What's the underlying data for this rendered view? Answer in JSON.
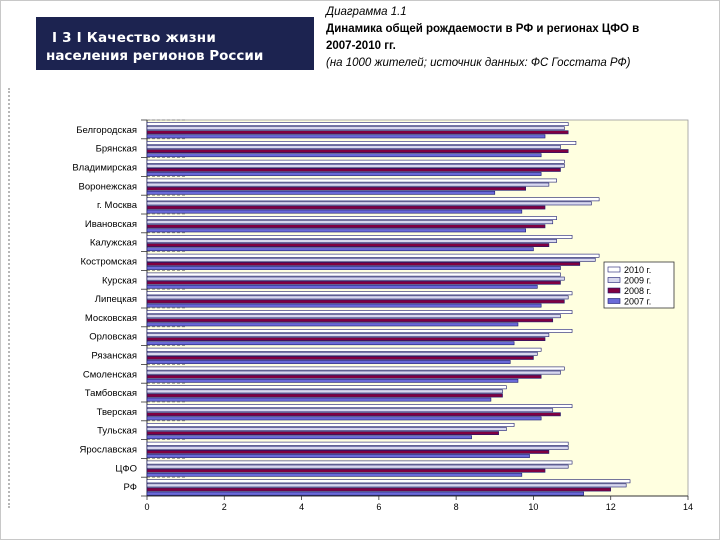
{
  "header": {
    "line1": "I 3 I Качество жизни",
    "line2": "населения регионов России"
  },
  "title": {
    "line1": "Диаграмма 1.1",
    "line2": "Динамика общей рождаемости в РФ и регионах ЦФО в",
    "line3": "2007-2010 гг.",
    "line4": "(на 1000 жителей; источник данных: ФС Госстата РФ)"
  },
  "colors": {
    "plot_bg": "#ffffe0",
    "s2010": "#ffffff",
    "s2009": "#d8d8ee",
    "s2008": "#800040",
    "s2007": "#6a6ad8",
    "outline": "#1a1a6e"
  },
  "chart_data": {
    "type": "bar",
    "orientation": "horizontal",
    "title": "Динамика общей рождаемости в РФ и регионах ЦФО в 2007-2010 гг.",
    "xlabel": "",
    "ylabel": "",
    "xlim": [
      0,
      14
    ],
    "xticks": [
      0,
      2,
      4,
      6,
      8,
      10,
      12,
      14
    ],
    "legend_position": "right",
    "categories": [
      "Белгородская",
      "Брянская",
      "Владимирская",
      "Воронежская",
      "г. Москва",
      "Ивановская",
      "Калужская",
      "Костромская",
      "Курская",
      "Липецкая",
      "Московская",
      "Орловская",
      "Рязанская",
      "Смоленская",
      "Тамбовская",
      "Тверская",
      "Тульская",
      "Ярославская",
      "ЦФО",
      "РФ"
    ],
    "series": [
      {
        "name": "2010 г.",
        "key": "s2010",
        "values": [
          10.9,
          11.1,
          10.8,
          10.6,
          11.7,
          10.6,
          11.0,
          11.7,
          10.7,
          11.0,
          11.0,
          11.0,
          10.2,
          10.8,
          9.3,
          11.0,
          9.5,
          10.9,
          11.0,
          12.5
        ]
      },
      {
        "name": "2009 г.",
        "key": "s2009",
        "values": [
          10.8,
          10.7,
          10.8,
          10.4,
          11.5,
          10.5,
          10.6,
          11.6,
          10.8,
          10.9,
          10.7,
          10.4,
          10.1,
          10.7,
          9.2,
          10.5,
          9.3,
          10.9,
          10.9,
          12.4
        ]
      },
      {
        "name": "2008 г.",
        "key": "s2008",
        "values": [
          10.9,
          10.9,
          10.7,
          9.8,
          10.3,
          10.3,
          10.4,
          11.2,
          10.7,
          10.8,
          10.5,
          10.3,
          10.0,
          10.2,
          9.2,
          10.7,
          9.1,
          10.4,
          10.3,
          12.0
        ]
      },
      {
        "name": "2007 г.",
        "key": "s2007",
        "values": [
          10.3,
          10.2,
          10.2,
          9.0,
          9.7,
          9.8,
          10.0,
          10.7,
          10.1,
          10.2,
          9.6,
          9.5,
          9.4,
          9.6,
          8.9,
          10.2,
          8.4,
          9.9,
          9.7,
          11.3
        ]
      }
    ]
  }
}
